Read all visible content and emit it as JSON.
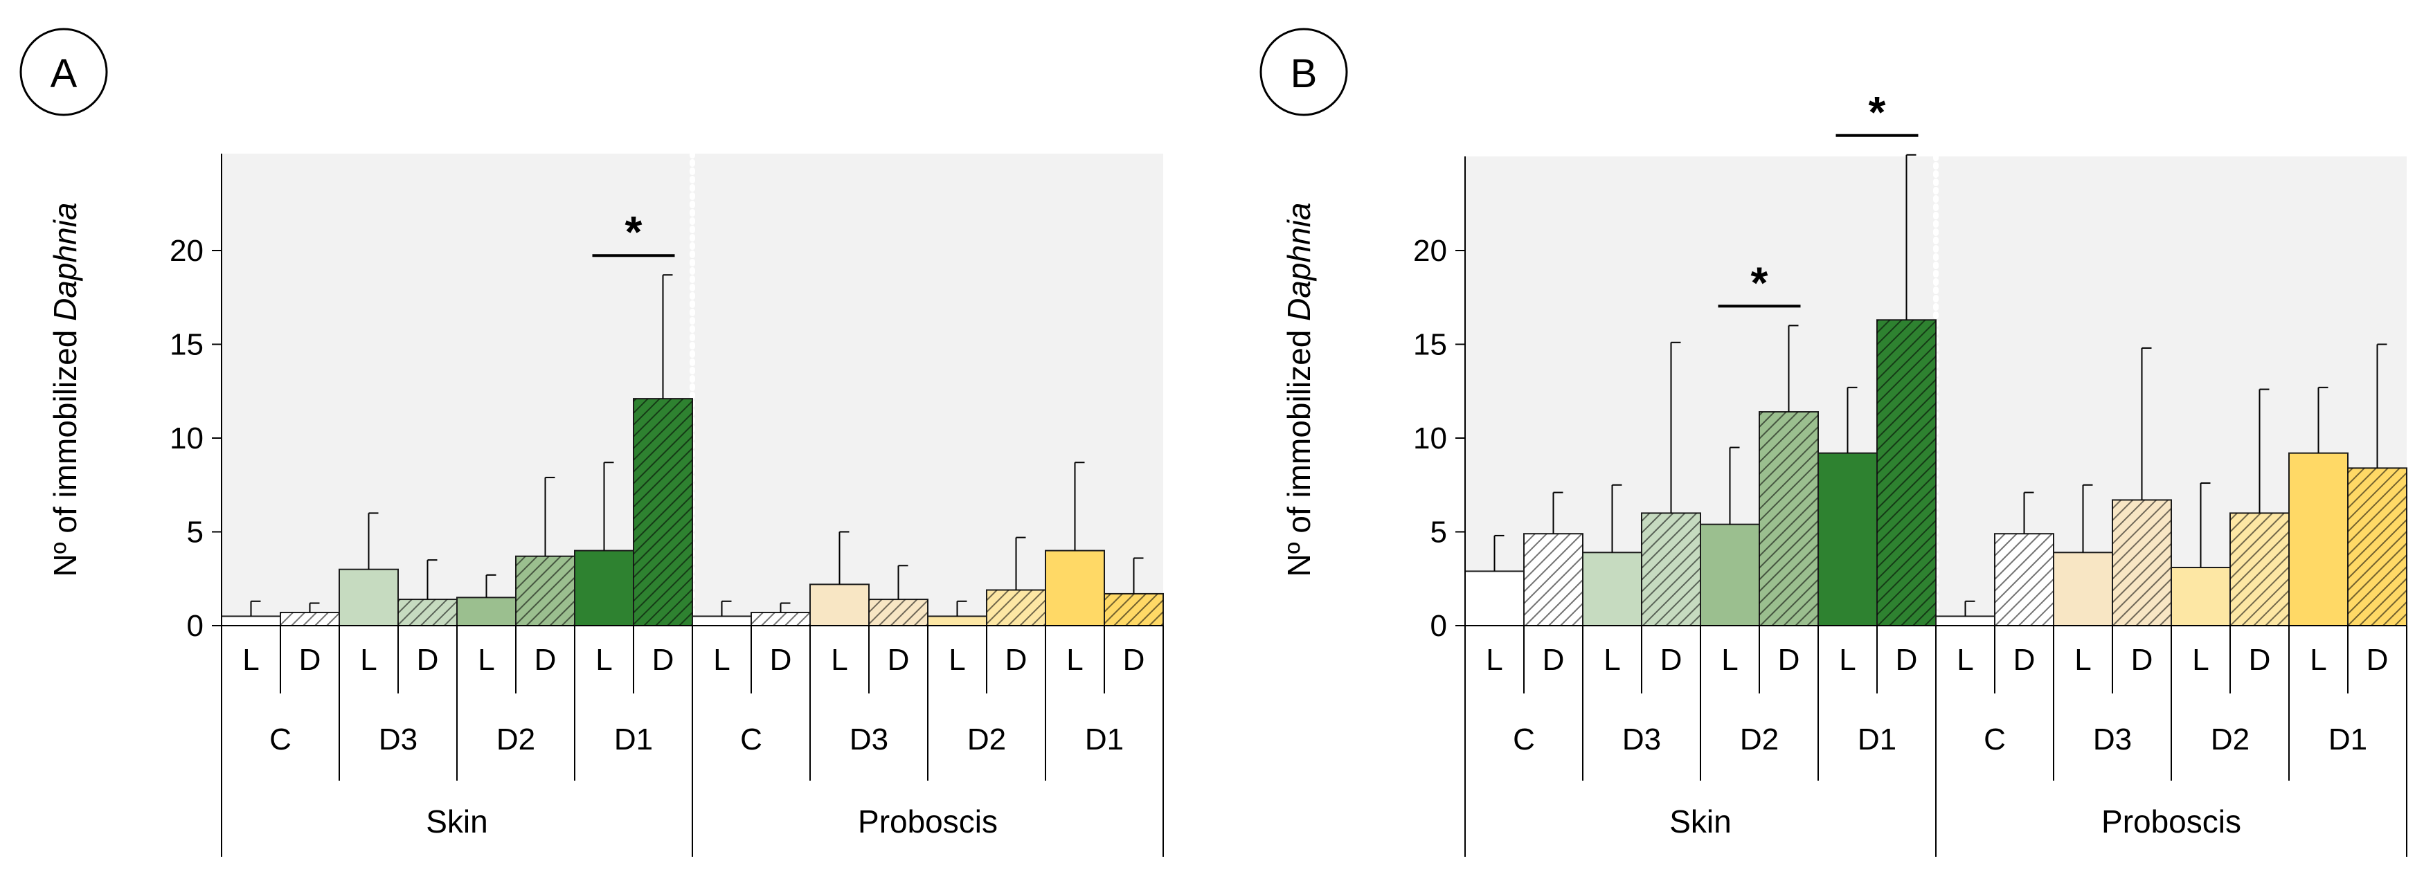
{
  "chart_data": [
    {
      "panel": "A",
      "type": "bar",
      "ylabel_prefix": "Nº of immobilized ",
      "ylabel_italic": "Daphnia",
      "yticks": [
        "0",
        "5",
        "10",
        "15",
        "20"
      ],
      "ylim": [
        0,
        25
      ],
      "groups": [
        "Skin",
        "Proboscis"
      ],
      "concentrations": [
        "C",
        "D3",
        "D2",
        "D1"
      ],
      "conditions": [
        "L",
        "D"
      ],
      "series": [
        {
          "group": "Skin",
          "values": [
            0.5,
            0.7,
            3.0,
            1.4,
            1.5,
            3.7,
            4.0,
            12.1
          ],
          "errors": [
            0.8,
            0.5,
            3.0,
            2.1,
            1.2,
            4.2,
            4.7,
            6.6
          ]
        },
        {
          "group": "Proboscis",
          "values": [
            0.5,
            0.7,
            2.2,
            1.4,
            0.5,
            1.9,
            4.0,
            1.7
          ],
          "errors": [
            0.8,
            0.5,
            2.8,
            1.8,
            0.8,
            2.8,
            4.7,
            1.9
          ]
        }
      ],
      "significance": [
        {
          "group": "Skin",
          "concentration": "D1",
          "label": "*"
        }
      ]
    },
    {
      "panel": "B",
      "type": "bar",
      "ylabel_prefix": "Nº of immobilized ",
      "ylabel_italic": "Daphnia",
      "yticks": [
        "0",
        "5",
        "10",
        "15",
        "20"
      ],
      "ylim": [
        0,
        25
      ],
      "groups": [
        "Skin",
        "Proboscis"
      ],
      "concentrations": [
        "C",
        "D3",
        "D2",
        "D1"
      ],
      "conditions": [
        "L",
        "D"
      ],
      "series": [
        {
          "group": "Skin",
          "values": [
            2.9,
            4.9,
            3.9,
            6.0,
            5.4,
            11.4,
            9.2,
            16.3
          ],
          "errors": [
            1.9,
            2.2,
            3.6,
            9.1,
            4.1,
            4.6,
            3.5,
            8.8
          ]
        },
        {
          "group": "Proboscis",
          "values": [
            0.5,
            4.9,
            3.9,
            6.7,
            3.1,
            6.0,
            9.2,
            8.4
          ],
          "errors": [
            0.8,
            2.2,
            3.6,
            8.1,
            4.5,
            6.6,
            3.5,
            6.6
          ]
        }
      ],
      "significance": [
        {
          "group": "Skin",
          "concentration": "D2",
          "label": "*"
        },
        {
          "group": "Skin",
          "concentration": "D1",
          "label": "*"
        }
      ]
    }
  ],
  "colors": {
    "plot_bg": "#f2f2f2",
    "skin": [
      "#ffffff",
      "#c6dbc0",
      "#9bbf8f",
      "#2e8230"
    ],
    "proboscis": [
      "#ffffff",
      "#f8e6c4",
      "#fde7a4",
      "#ffd966"
    ],
    "outline": "#1a1a1a"
  }
}
